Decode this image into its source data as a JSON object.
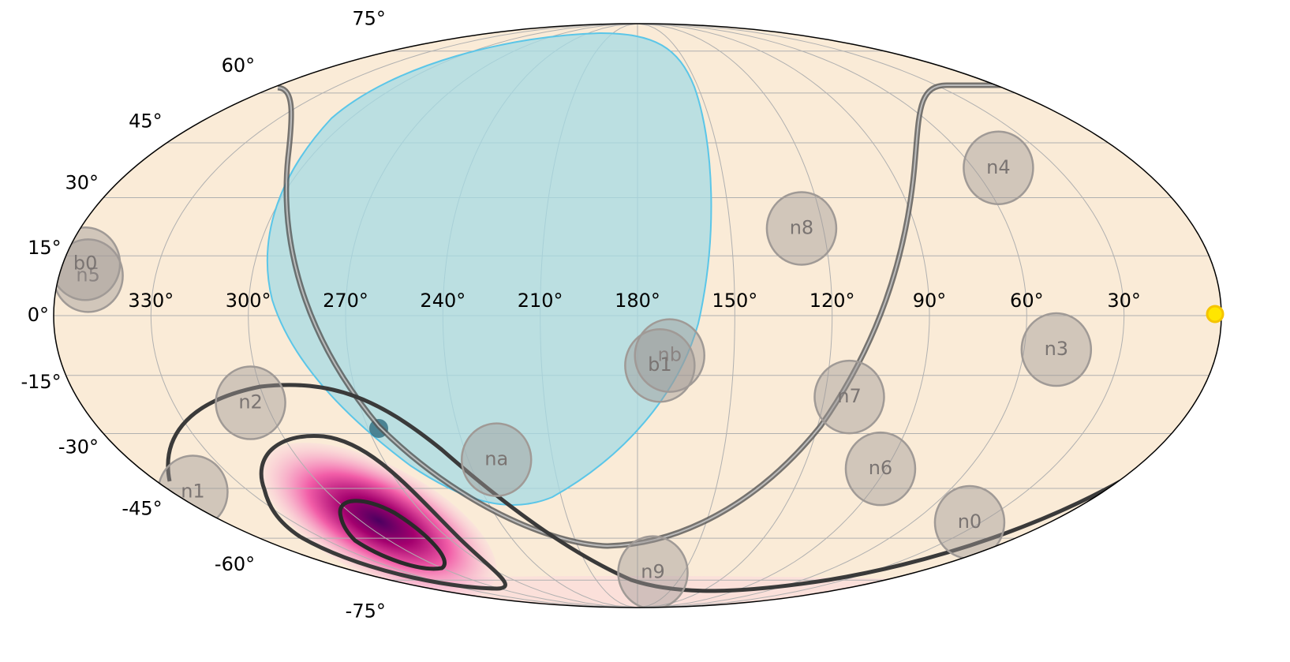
{
  "chart_data": {
    "type": "skymap",
    "projection": "mollweide",
    "xlim": [
      360,
      0
    ],
    "ylim": [
      -90,
      90
    ],
    "xticks": [
      {
        "value": 330,
        "label": "330°"
      },
      {
        "value": 300,
        "label": "300°"
      },
      {
        "value": 270,
        "label": "270°"
      },
      {
        "value": 240,
        "label": "240°"
      },
      {
        "value": 210,
        "label": "210°"
      },
      {
        "value": 180,
        "label": "180°"
      },
      {
        "value": 150,
        "label": "150°"
      },
      {
        "value": 120,
        "label": "120°"
      },
      {
        "value": 90,
        "label": "90°"
      },
      {
        "value": 60,
        "label": "60°"
      },
      {
        "value": 30,
        "label": "30°"
      }
    ],
    "yticks": [
      {
        "value": -75,
        "label": "-75°"
      },
      {
        "value": -60,
        "label": "-60°"
      },
      {
        "value": -45,
        "label": "-45°"
      },
      {
        "value": -30,
        "label": "-30°"
      },
      {
        "value": -15,
        "label": "-15°"
      },
      {
        "value": 0,
        "label": "0°"
      },
      {
        "value": 15,
        "label": "15°"
      },
      {
        "value": 30,
        "label": "30°"
      },
      {
        "value": 45,
        "label": "45°"
      },
      {
        "value": 60,
        "label": "60°"
      },
      {
        "value": 75,
        "label": "75°"
      }
    ],
    "grid": true,
    "detectors": {
      "color": "#a09a96",
      "names": [
        "n0",
        "n1",
        "n2",
        "n3",
        "n4",
        "n5",
        "n6",
        "n7",
        "n8",
        "n9",
        "na",
        "nb",
        "b0",
        "b1"
      ],
      "ra": [
        35,
        352,
        305,
        50,
        51,
        351,
        92,
        112,
        127,
        170,
        230,
        170,
        353,
        173
      ],
      "dec": [
        -55,
        -46,
        -22,
        -8.5,
        38,
        10,
        -39.5,
        -20.5,
        22,
        -72,
        -37,
        -10,
        13,
        -12.5
      ]
    }
  }
}
